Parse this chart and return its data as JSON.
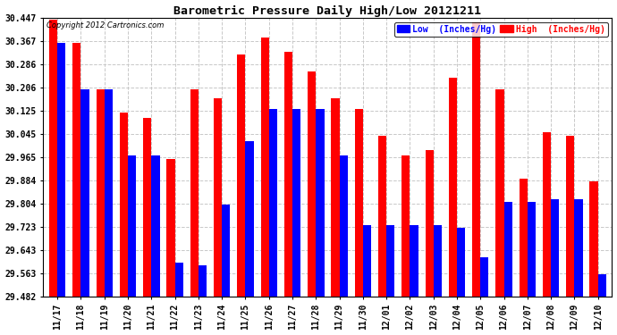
{
  "title": "Barometric Pressure Daily High/Low 20121211",
  "copyright": "Copyright 2012 Cartronics.com",
  "categories": [
    "11/17",
    "11/18",
    "11/19",
    "11/20",
    "11/21",
    "11/22",
    "11/23",
    "11/24",
    "11/25",
    "11/26",
    "11/27",
    "11/28",
    "11/29",
    "11/30",
    "12/01",
    "12/02",
    "12/03",
    "12/04",
    "12/05",
    "12/06",
    "12/07",
    "12/08",
    "12/09",
    "12/10"
  ],
  "high_values": [
    30.44,
    30.36,
    30.2,
    30.12,
    30.1,
    29.96,
    30.2,
    30.17,
    30.32,
    30.38,
    30.33,
    30.26,
    30.17,
    30.13,
    30.04,
    29.97,
    29.99,
    30.24,
    30.43,
    30.2,
    29.89,
    30.05,
    30.04,
    29.88
  ],
  "low_values": [
    30.36,
    30.2,
    30.2,
    29.97,
    29.97,
    29.6,
    29.59,
    29.8,
    30.02,
    30.13,
    30.13,
    30.13,
    29.97,
    29.73,
    29.73,
    29.73,
    29.73,
    29.72,
    29.62,
    29.81,
    29.81,
    29.82,
    29.82,
    29.56
  ],
  "ymin": 29.482,
  "ymax": 30.447,
  "yticks": [
    29.482,
    29.563,
    29.643,
    29.723,
    29.804,
    29.884,
    29.965,
    30.045,
    30.125,
    30.206,
    30.286,
    30.367,
    30.447
  ],
  "high_color": "#ff0000",
  "low_color": "#0000ff",
  "bg_color": "#ffffff",
  "grid_color": "#c8c8c8",
  "title_fontsize": 9.5,
  "bar_width": 0.35,
  "figwidth": 6.9,
  "figheight": 3.75
}
